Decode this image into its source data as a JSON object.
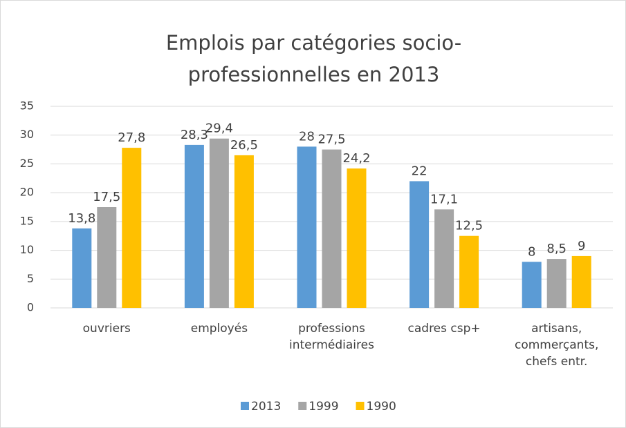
{
  "chart_data": {
    "type": "bar",
    "title": "Emplois par catégories socio-professionnelles en 2013",
    "categories": [
      "ouvriers",
      "employés",
      "professions intermédiaires",
      "cadres csp+",
      "artisans, commerçants, chefs entr."
    ],
    "series": [
      {
        "name": "2013",
        "color": "#5b9bd5",
        "values": [
          13.8,
          28.3,
          28,
          22,
          8
        ],
        "value_labels": [
          "13,8",
          "28,3",
          "28",
          "22",
          "8"
        ]
      },
      {
        "name": "1999",
        "color": "#a5a5a5",
        "values": [
          17.5,
          29.4,
          27.5,
          17.1,
          8.5
        ],
        "value_labels": [
          "17,5",
          "29,4",
          "27,5",
          "17,1",
          "8,5"
        ]
      },
      {
        "name": "1990",
        "color": "#ffc000",
        "values": [
          27.8,
          26.5,
          24.2,
          12.5,
          9
        ],
        "value_labels": [
          "27,8",
          "26,5",
          "24,2",
          "12,5",
          "9"
        ]
      }
    ],
    "ylim": [
      0,
      35
    ],
    "yticks": [
      0,
      5,
      10,
      15,
      20,
      25,
      30,
      35
    ],
    "grid": true,
    "legend": "bottom"
  }
}
